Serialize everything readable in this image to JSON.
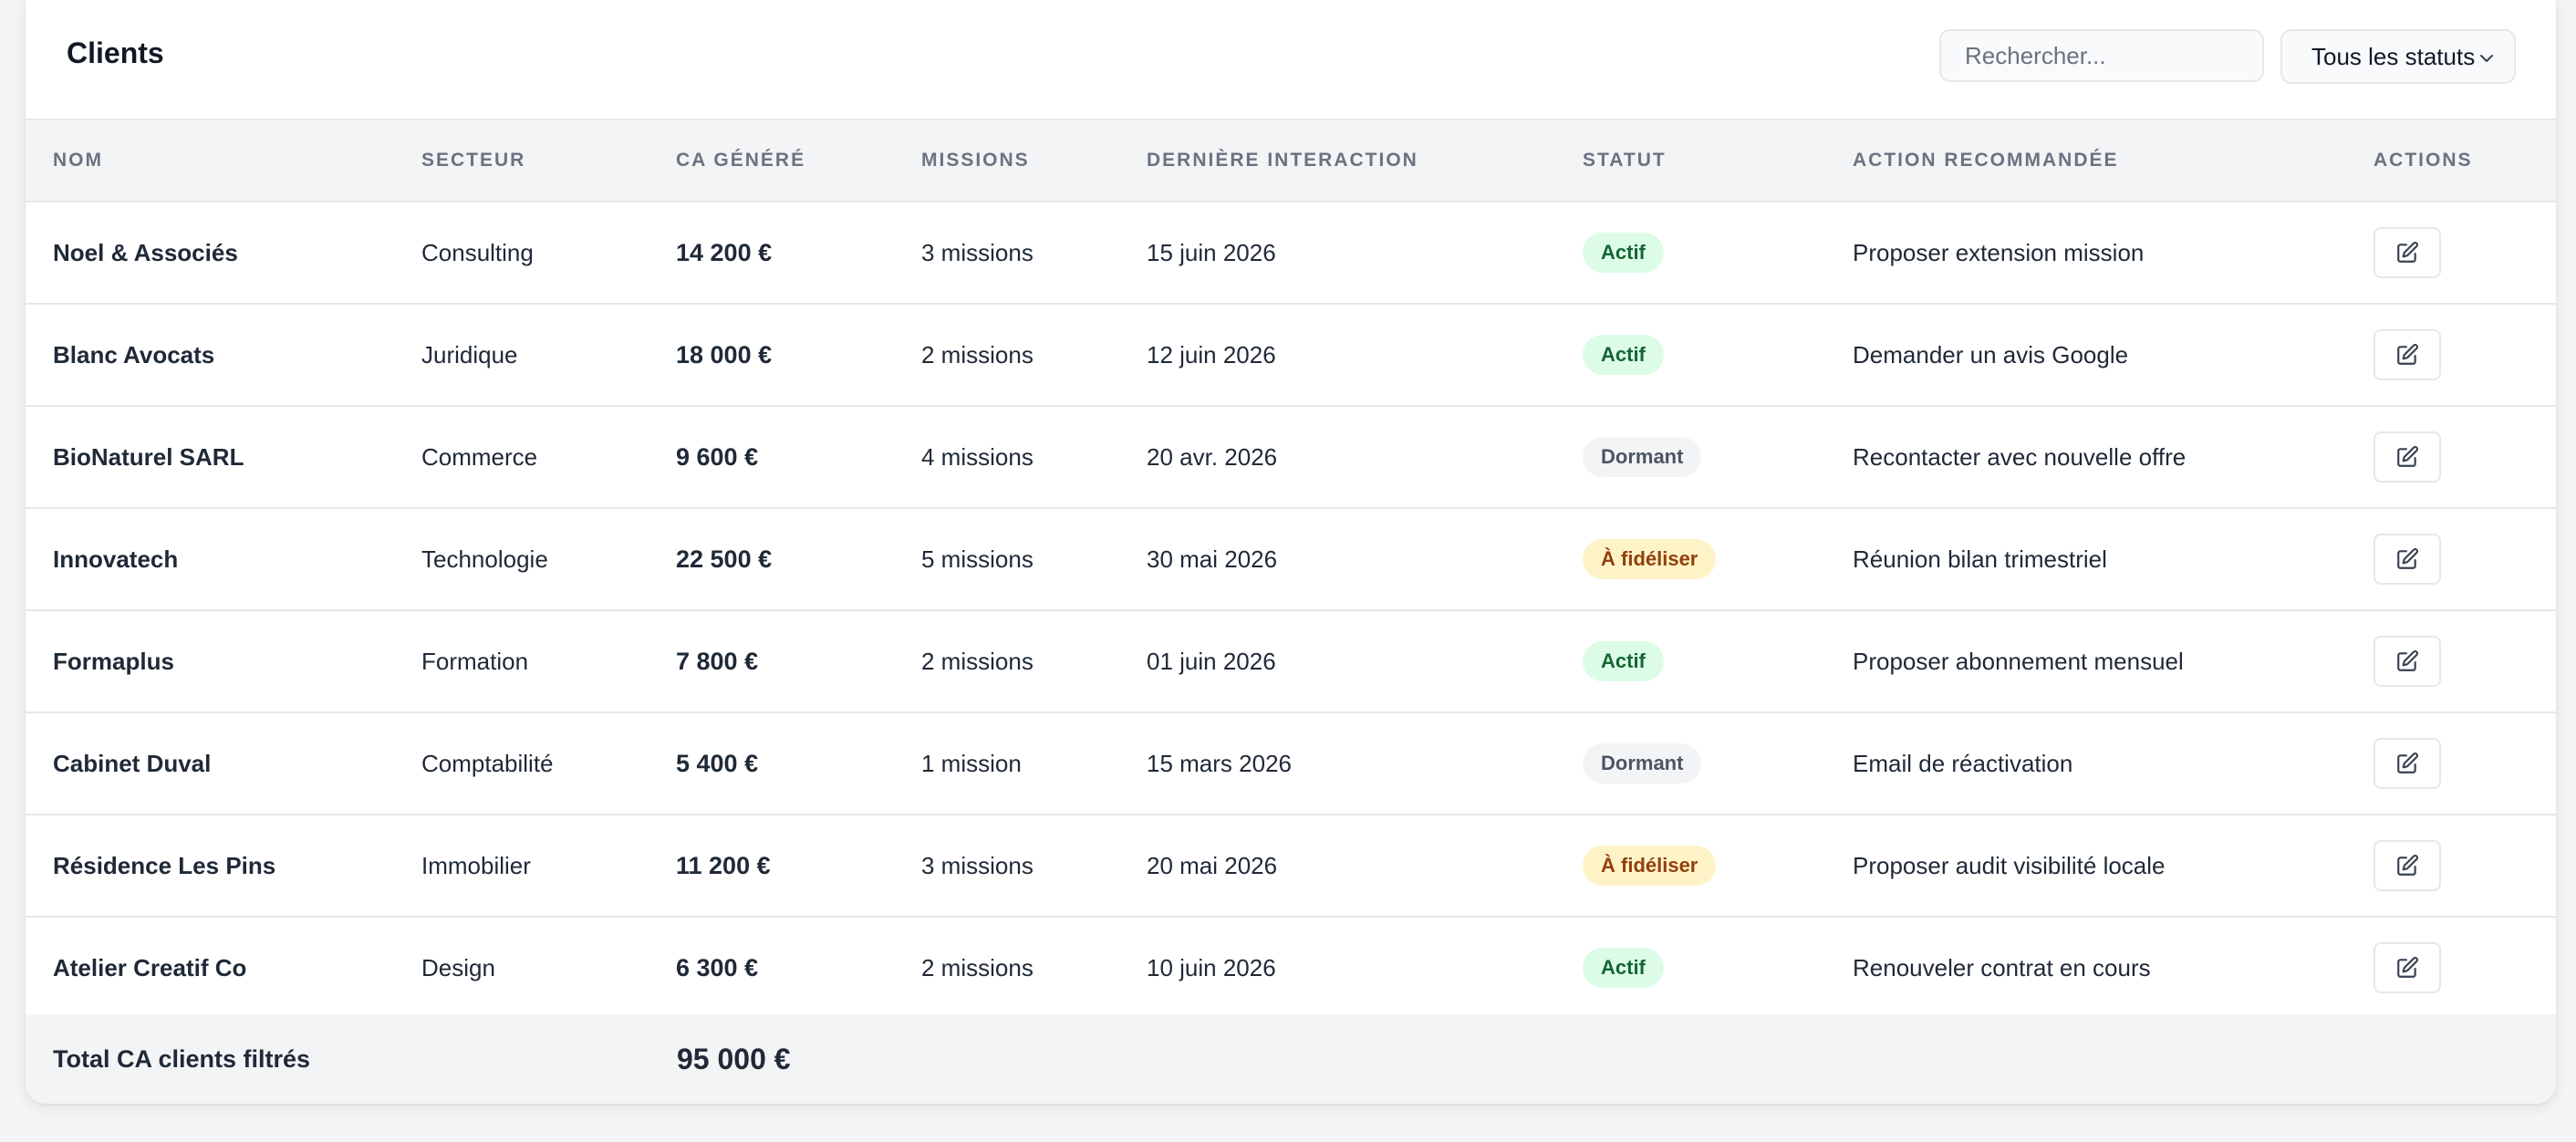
{
  "header": {
    "title": "Clients",
    "search_placeholder": "Rechercher...",
    "status_filter": "Tous les statuts"
  },
  "columns": {
    "nom": "NOM",
    "secteur": "SECTEUR",
    "ca": "CA GÉNÉRÉ",
    "missions": "MISSIONS",
    "derniere": "DERNIÈRE INTERACTION",
    "statut": "STATUT",
    "action": "ACTION RECOMMANDÉE",
    "actions": "ACTIONS"
  },
  "rows": [
    {
      "nom": "Noel & Associés",
      "secteur": "Consulting",
      "ca": "14 200 €",
      "missions": "3 missions",
      "derniere": "15 juin 2026",
      "statut": "Actif",
      "action": "Proposer extension mission"
    },
    {
      "nom": "Blanc Avocats",
      "secteur": "Juridique",
      "ca": "18 000 €",
      "missions": "2 missions",
      "derniere": "12 juin 2026",
      "statut": "Actif",
      "action": "Demander un avis Google"
    },
    {
      "nom": "BioNaturel SARL",
      "secteur": "Commerce",
      "ca": "9 600 €",
      "missions": "4 missions",
      "derniere": "20 avr. 2026",
      "statut": "Dormant",
      "action": "Recontacter avec nouvelle offre"
    },
    {
      "nom": "Innovatech",
      "secteur": "Technologie",
      "ca": "22 500 €",
      "missions": "5 missions",
      "derniere": "30 mai 2026",
      "statut": "À fidéliser",
      "action": "Réunion bilan trimestriel"
    },
    {
      "nom": "Formaplus",
      "secteur": "Formation",
      "ca": "7 800 €",
      "missions": "2 missions",
      "derniere": "01 juin 2026",
      "statut": "Actif",
      "action": "Proposer abonnement mensuel"
    },
    {
      "nom": "Cabinet Duval",
      "secteur": "Comptabilité",
      "ca": "5 400 €",
      "missions": "1 mission",
      "derniere": "15 mars 2026",
      "statut": "Dormant",
      "action": "Email de réactivation"
    },
    {
      "nom": "Résidence Les Pins",
      "secteur": "Immobilier",
      "ca": "11 200 €",
      "missions": "3 missions",
      "derniere": "20 mai 2026",
      "statut": "À fidéliser",
      "action": "Proposer audit visibilité locale"
    },
    {
      "nom": "Atelier Creatif Co",
      "secteur": "Design",
      "ca": "6 300 €",
      "missions": "2 missions",
      "derniere": "10 juin 2026",
      "statut": "Actif",
      "action": "Renouveler contrat en cours"
    }
  ],
  "footer": {
    "label": "Total CA clients filtrés",
    "value": "95 000 €"
  },
  "status_colors": {
    "Actif": "#166534",
    "Dormant": "#4b5563",
    "À fidéliser": "#92400e"
  }
}
